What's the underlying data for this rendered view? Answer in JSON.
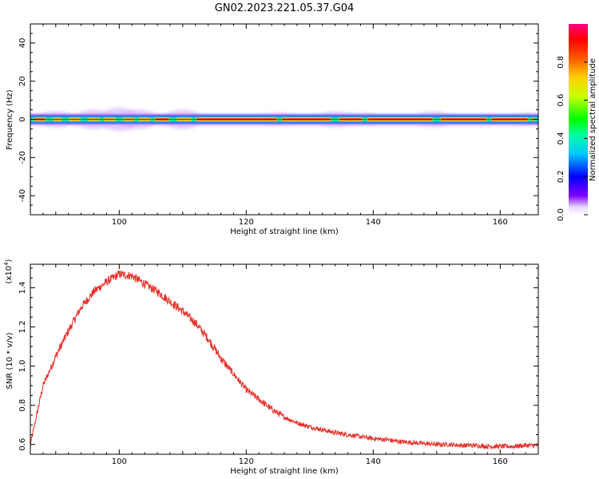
{
  "title": "GN02.2023.221.05.37.G04",
  "colorbar": {
    "label": "Normalized spectral amplitude",
    "ticks": [
      "0.0",
      "0.2",
      "0.4",
      "0.6",
      "0.8"
    ],
    "tick_values": [
      0.0,
      0.2,
      0.4,
      0.6,
      0.8
    ],
    "range": [
      0,
      1
    ],
    "colormap": "rainbow (white-violet-blue-cyan-green-yellow-orange-red-magenta)"
  },
  "chart_data": [
    {
      "type": "heatmap",
      "xlabel": "Height of straight line (km)",
      "ylabel": "Frequency (Hz)",
      "xlim": [
        86,
        166
      ],
      "ylim": [
        -50,
        50
      ],
      "xticks": [
        100,
        120,
        140,
        160
      ],
      "xtick_labels": [
        "100",
        "120",
        "140",
        "160"
      ],
      "yticks": [
        40,
        20,
        0,
        -20,
        -40
      ],
      "ytick_labels": [
        "40",
        "20",
        "0",
        "-20",
        "-40"
      ],
      "description_band": "Spectral energy concentrated in a narrow band near 0 Hz (about -3 to +3 Hz) across all heights",
      "band_center_hz": 0,
      "band_halfwidth_hz": 1.2,
      "band_segments": [
        {
          "x0": 86.5,
          "x1": 88.5,
          "amp": 0.9
        },
        {
          "x0": 89.5,
          "x1": 91.0,
          "amp": 0.75
        },
        {
          "x0": 92.0,
          "x1": 94.0,
          "amp": 0.85
        },
        {
          "x0": 95.0,
          "x1": 97.0,
          "amp": 0.7
        },
        {
          "x0": 97.5,
          "x1": 99.5,
          "amp": 0.8
        },
        {
          "x0": 100.5,
          "x1": 102.5,
          "amp": 0.65
        },
        {
          "x0": 103.0,
          "x1": 105.0,
          "amp": 0.75
        },
        {
          "x0": 105.5,
          "x1": 108.0,
          "amp": 0.92
        },
        {
          "x0": 109.0,
          "x1": 111.5,
          "amp": 0.8
        },
        {
          "x0": 112.0,
          "x1": 125.0,
          "amp": 0.95
        },
        {
          "x0": 125.5,
          "x1": 133.5,
          "amp": 0.95
        },
        {
          "x0": 134.5,
          "x1": 138.5,
          "amp": 0.95
        },
        {
          "x0": 139.0,
          "x1": 149.5,
          "amp": 0.95
        },
        {
          "x0": 150.5,
          "x1": 158.0,
          "amp": 0.95
        },
        {
          "x0": 158.5,
          "x1": 164.5,
          "amp": 0.95
        },
        {
          "x0": 164.8,
          "x1": 165.5,
          "amp": 0.9
        }
      ],
      "halo_peaks_hz": [
        {
          "x": 90,
          "spread": 4
        },
        {
          "x": 96,
          "spread": 5
        },
        {
          "x": 100,
          "spread": 6
        },
        {
          "x": 103,
          "spread": 5
        },
        {
          "x": 110,
          "spread": 5
        },
        {
          "x": 125,
          "spread": 3
        },
        {
          "x": 134,
          "spread": 4
        },
        {
          "x": 138,
          "spread": 3
        },
        {
          "x": 149.5,
          "spread": 4
        },
        {
          "x": 164.5,
          "spread": 3
        }
      ]
    },
    {
      "type": "line",
      "xlabel": "Height of straight line (km)",
      "ylabel": "SNR (10 * v/v)",
      "y_multiplier_label": "(x10",
      "y_multiplier_exp": "4",
      "y_multiplier_close": ")",
      "xlim": [
        86,
        166
      ],
      "ylim": [
        0.55,
        1.52
      ],
      "xticks": [
        100,
        120,
        140,
        160
      ],
      "xtick_labels": [
        "100",
        "120",
        "140",
        "160"
      ],
      "yticks": [
        0.6,
        0.8,
        1.0,
        1.2,
        1.4
      ],
      "ytick_labels": [
        "0.6",
        "0.8",
        "1.0",
        "1.2",
        "1.4"
      ],
      "line_color": "#e8302a",
      "series": [
        {
          "x": [
            86,
            88,
            90,
            92,
            94,
            96,
            98,
            100,
            102,
            104,
            106,
            108,
            110,
            112,
            114,
            116,
            118,
            120,
            122,
            124,
            126,
            128,
            130,
            132,
            134,
            136,
            138,
            140,
            142,
            144,
            146,
            148,
            150,
            152,
            154,
            156,
            158,
            160,
            162,
            164,
            166
          ],
          "values": [
            0.6,
            0.9,
            1.05,
            1.18,
            1.3,
            1.38,
            1.43,
            1.47,
            1.46,
            1.42,
            1.38,
            1.33,
            1.28,
            1.22,
            1.14,
            1.04,
            0.96,
            0.88,
            0.83,
            0.78,
            0.74,
            0.71,
            0.69,
            0.675,
            0.66,
            0.65,
            0.64,
            0.63,
            0.625,
            0.615,
            0.61,
            0.605,
            0.6,
            0.6,
            0.595,
            0.595,
            0.59,
            0.59,
            0.59,
            0.595,
            0.595
          ]
        }
      ]
    }
  ]
}
